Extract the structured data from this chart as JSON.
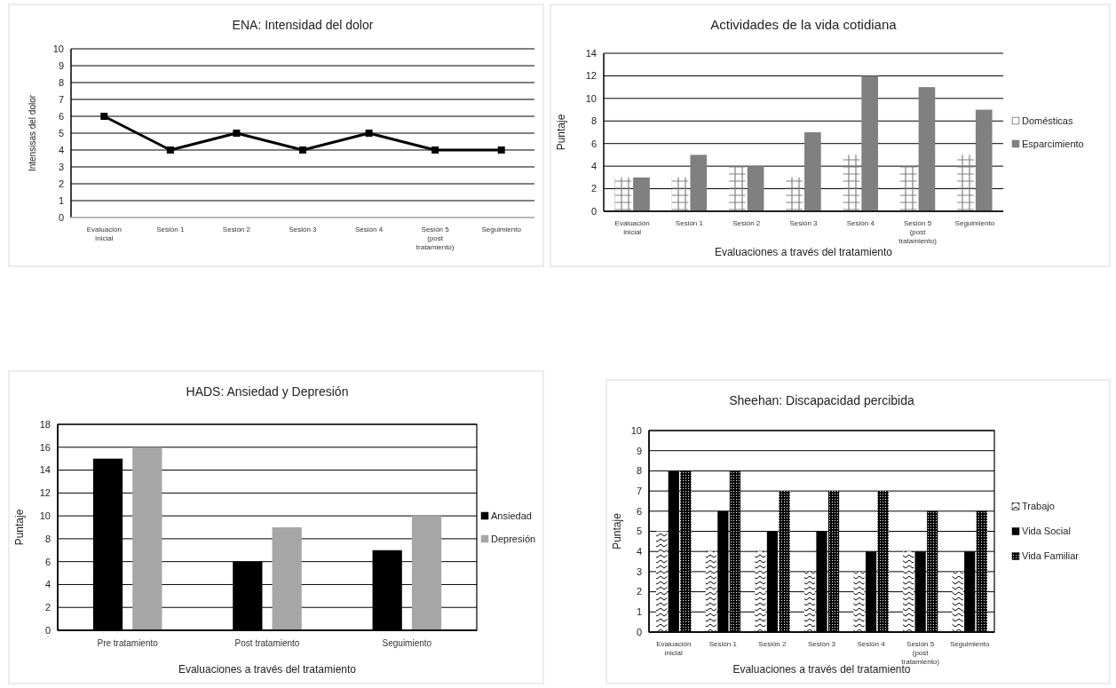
{
  "chart_data": [
    {
      "type": "line",
      "title": "ENA: Intensidad del dolor",
      "ylabel": "Intensisas del dolor",
      "categories": [
        "Evaluación Inicial",
        "Sesión 1",
        "Sesión 2",
        "Sesión 3",
        "Sesión 4",
        "Sesión 5 (post tratamiento)",
        "Seguimiento"
      ],
      "series": [
        {
          "color": "#000000",
          "values": [
            6,
            4,
            5,
            4,
            5,
            4,
            4
          ]
        }
      ],
      "ylim": [
        0,
        10
      ],
      "yticks": [
        0,
        1,
        2,
        3,
        4,
        5,
        6,
        7,
        8,
        9,
        10
      ],
      "grid": "y",
      "marker": "square",
      "line_style": "solid",
      "legend": false
    },
    {
      "type": "bar",
      "title": "Actividades de la vida cotidiana",
      "xlabel": "Evaluaciones a través del tratamiento",
      "ylabel": "Puntaje",
      "categories": [
        "Evaluación inicial",
        "Sesión 1",
        "Sesión 2",
        "Sesión 3",
        "Sesión 4",
        "Sesión 5 (post tratamiento)",
        "Seguimiento"
      ],
      "series": [
        {
          "name": "Domésticas",
          "color": "#808080",
          "values": [
            3,
            3,
            4,
            3,
            5,
            4,
            5
          ]
        },
        {
          "name": "Esparcimiento",
          "color": "#808080",
          "values": [
            3,
            5,
            4,
            7,
            12,
            11,
            9
          ]
        }
      ],
      "ylim": [
        0,
        14
      ],
      "yticks": [
        0,
        2,
        4,
        6,
        8,
        10,
        12,
        14
      ],
      "grid": "y",
      "legend": "right"
    },
    {
      "type": "bar",
      "title": "HADS: Ansiedad y Depresión",
      "xlabel": "Evaluaciones a través del tratamiento",
      "ylabel": "Puntaje",
      "categories": [
        "Pre tratamiento",
        "Post tratamiento",
        "Seguimiento"
      ],
      "series": [
        {
          "name": "Ansiedad",
          "color": "#000000",
          "values": [
            15,
            6,
            7
          ]
        },
        {
          "name": "Depresión",
          "color": "#a6a6a6",
          "values": [
            16,
            9,
            10
          ]
        }
      ],
      "ylim": [
        0,
        18
      ],
      "yticks": [
        0,
        2,
        4,
        6,
        8,
        10,
        12,
        14,
        16,
        18
      ],
      "grid": "y",
      "legend": "right"
    },
    {
      "type": "bar",
      "title": "Sheehan: Discapacidad percibida",
      "xlabel": "Evaluaciones a través del tratamiento",
      "ylabel": "Puntaje",
      "categories": [
        "Evaluación inicial",
        "Sesión 1",
        "Sesión 2",
        "Sesión 3",
        "Sesión 4",
        "Sesión 5 (post tratamiento)",
        "Seguimiento"
      ],
      "series": [
        {
          "name": "Trabajo",
          "color": "#000000",
          "values": [
            5,
            4,
            4,
            3,
            3,
            4,
            3
          ]
        },
        {
          "name": "Vida Social",
          "color": "#000000",
          "values": [
            8,
            6,
            5,
            5,
            4,
            4,
            4
          ]
        },
        {
          "name": "Vida Familiar",
          "color": "#000000",
          "values": [
            8,
            8,
            7,
            7,
            7,
            6,
            6
          ]
        }
      ],
      "ylim": [
        0,
        10
      ],
      "yticks": [
        0,
        1,
        2,
        3,
        4,
        5,
        6,
        7,
        8,
        9,
        10
      ],
      "grid": "y",
      "legend": "right"
    }
  ]
}
